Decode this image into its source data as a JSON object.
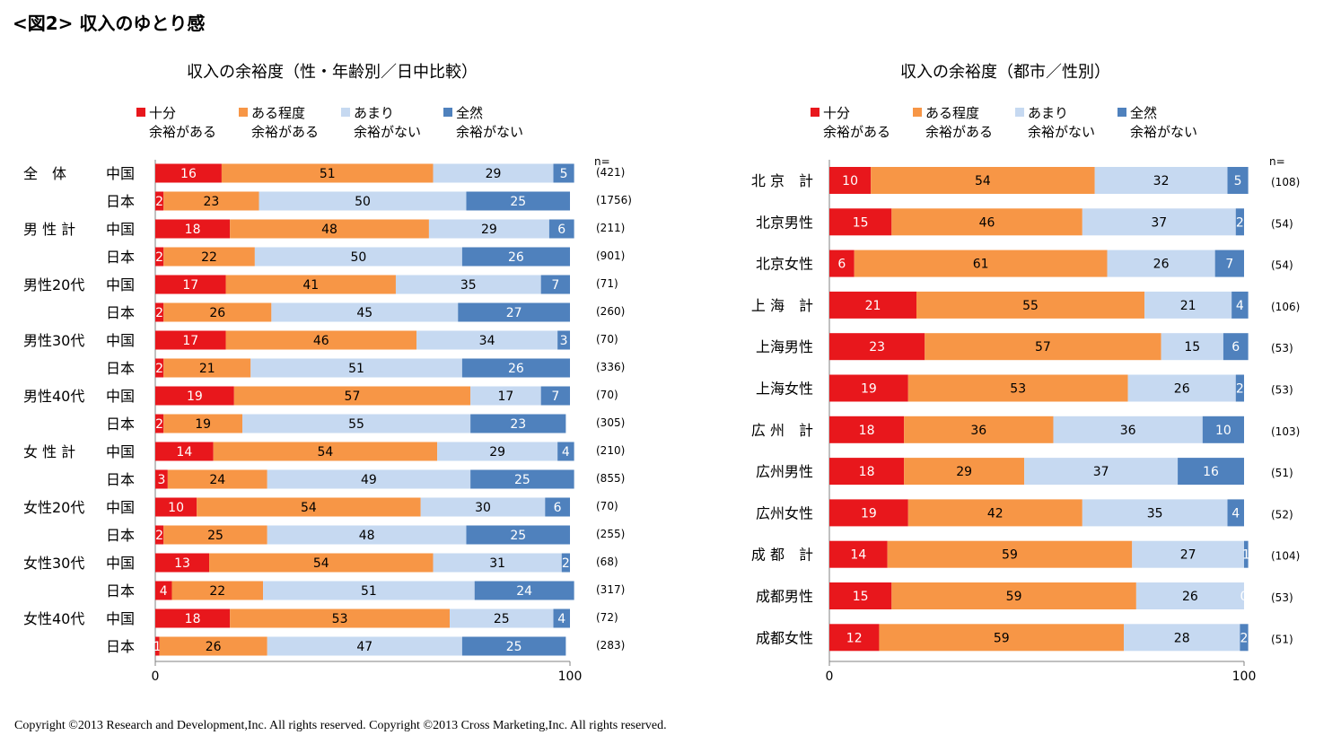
{
  "figure_title": "<図2> 収入のゆとり感",
  "copyright": "Copyright ©2013 Research and Development,Inc. All rights reserved. Copyright ©2013 Cross Marketing,Inc. All rights reserved.",
  "legend": [
    {
      "line1": "十分",
      "line2": "余裕がある",
      "color": "#e8171c"
    },
    {
      "line1": "ある程度",
      "line2": "余裕がある",
      "color": "#f79646"
    },
    {
      "line1": "あまり",
      "line2": "余裕がない",
      "color": "#c6d9f1"
    },
    {
      "line1": "全然",
      "line2": "余裕がない",
      "color": "#4f81bd"
    }
  ],
  "chart_data": [
    {
      "type": "bar",
      "orientation": "horizontal",
      "stacked": true,
      "title": "収入の余裕度（性・年齢別／日中比較）",
      "n_header": "n=",
      "xlim": [
        0,
        100
      ],
      "xticks": [
        "0",
        "100"
      ],
      "series_names": [
        "十分余裕がある",
        "ある程度余裕がある",
        "あまり余裕がない",
        "全然余裕がない"
      ],
      "rows": [
        {
          "group": "全　体",
          "country": "中国",
          "values": [
            16,
            51,
            29,
            5
          ],
          "n": "(421)"
        },
        {
          "group": "",
          "country": "日本",
          "values": [
            2,
            23,
            50,
            25
          ],
          "n": "(1756)"
        },
        {
          "group": "男 性 計",
          "country": "中国",
          "values": [
            18,
            48,
            29,
            6
          ],
          "n": "(211)"
        },
        {
          "group": "",
          "country": "日本",
          "values": [
            2,
            22,
            50,
            26
          ],
          "n": "(901)"
        },
        {
          "group": "男性20代",
          "country": "中国",
          "values": [
            17,
            41,
            35,
            7
          ],
          "n": "(71)"
        },
        {
          "group": "",
          "country": "日本",
          "values": [
            2,
            26,
            45,
            27
          ],
          "n": "(260)"
        },
        {
          "group": "男性30代",
          "country": "中国",
          "values": [
            17,
            46,
            34,
            3
          ],
          "n": "(70)"
        },
        {
          "group": "",
          "country": "日本",
          "values": [
            2,
            21,
            51,
            26
          ],
          "n": "(336)"
        },
        {
          "group": "男性40代",
          "country": "中国",
          "values": [
            19,
            57,
            17,
            7
          ],
          "n": "(70)"
        },
        {
          "group": "",
          "country": "日本",
          "values": [
            2,
            19,
            55,
            23
          ],
          "n": "(305)"
        },
        {
          "group": "女 性 計",
          "country": "中国",
          "values": [
            14,
            54,
            29,
            4
          ],
          "n": "(210)"
        },
        {
          "group": "",
          "country": "日本",
          "values": [
            3,
            24,
            49,
            25
          ],
          "n": "(855)"
        },
        {
          "group": "女性20代",
          "country": "中国",
          "values": [
            10,
            54,
            30,
            6
          ],
          "n": "(70)"
        },
        {
          "group": "",
          "country": "日本",
          "values": [
            2,
            25,
            48,
            25
          ],
          "n": "(255)"
        },
        {
          "group": "女性30代",
          "country": "中国",
          "values": [
            13,
            54,
            31,
            2
          ],
          "n": "(68)"
        },
        {
          "group": "",
          "country": "日本",
          "values": [
            4,
            22,
            51,
            24
          ],
          "n": "(317)"
        },
        {
          "group": "女性40代",
          "country": "中国",
          "values": [
            18,
            53,
            25,
            4
          ],
          "n": "(72)"
        },
        {
          "group": "",
          "country": "日本",
          "values": [
            1,
            26,
            47,
            25
          ],
          "n": "(283)"
        }
      ]
    },
    {
      "type": "bar",
      "orientation": "horizontal",
      "stacked": true,
      "title": "収入の余裕度（都市／性別）",
      "n_header": "n=",
      "xlim": [
        0,
        100
      ],
      "xticks": [
        "0",
        "100"
      ],
      "series_names": [
        "十分余裕がある",
        "ある程度余裕がある",
        "あまり余裕がない",
        "全然余裕がない"
      ],
      "rows": [
        {
          "label": "北 京　計",
          "values": [
            10,
            54,
            32,
            5
          ],
          "n": "(108)"
        },
        {
          "label": "北京男性",
          "values": [
            15,
            46,
            37,
            2
          ],
          "n": "(54)"
        },
        {
          "label": "北京女性",
          "values": [
            6,
            61,
            26,
            7
          ],
          "n": "(54)"
        },
        {
          "label": "上 海　計",
          "values": [
            21,
            55,
            21,
            4
          ],
          "n": "(106)"
        },
        {
          "label": "上海男性",
          "values": [
            23,
            57,
            15,
            6
          ],
          "n": "(53)"
        },
        {
          "label": "上海女性",
          "values": [
            19,
            53,
            26,
            2
          ],
          "n": "(53)"
        },
        {
          "label": "広 州　計",
          "values": [
            18,
            36,
            36,
            10
          ],
          "n": "(103)"
        },
        {
          "label": "広州男性",
          "values": [
            18,
            29,
            37,
            16
          ],
          "n": "(51)"
        },
        {
          "label": "広州女性",
          "values": [
            19,
            42,
            35,
            4
          ],
          "n": "(52)"
        },
        {
          "label": "成 都　計",
          "values": [
            14,
            59,
            27,
            1
          ],
          "n": "(104)"
        },
        {
          "label": "成都男性",
          "values": [
            15,
            59,
            26,
            0
          ],
          "n": "(53)"
        },
        {
          "label": "成都女性",
          "values": [
            12,
            59,
            28,
            2
          ],
          "n": "(51)"
        }
      ]
    }
  ]
}
